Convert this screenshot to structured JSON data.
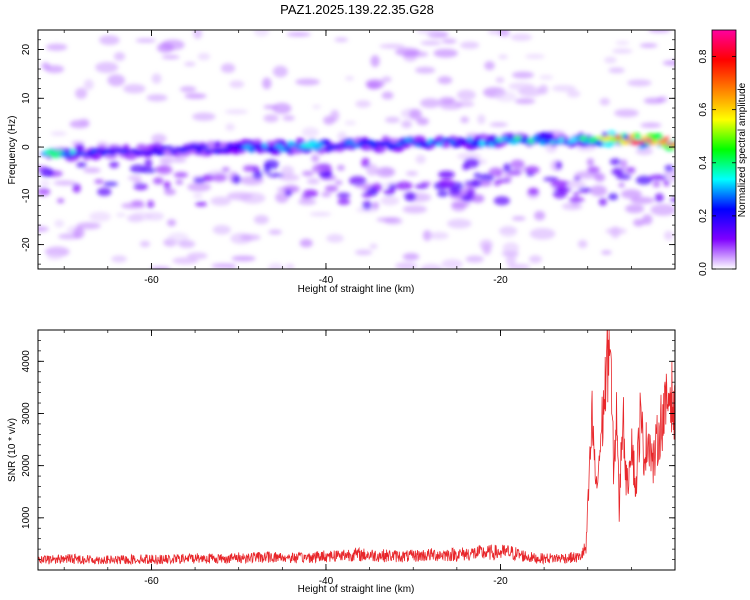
{
  "title": "PAZ1.2025.139.22.35.G28",
  "chart_data": [
    {
      "type": "heatmap",
      "title": "PAZ1.2025.139.22.35.G28",
      "xlabel": "Height of straight line (km)",
      "ylabel": "Frequency (Hz)",
      "xlim": [
        -73,
        0
      ],
      "ylim": [
        -25,
        24
      ],
      "xticks": [
        -60,
        -40,
        -20
      ],
      "yticks": [
        -20,
        -10,
        0,
        10,
        20
      ],
      "colorbar": {
        "label": "Normalized spectral amplitude",
        "range": [
          0,
          0.9
        ],
        "ticks": [
          0,
          0.2,
          0.4,
          0.6,
          0.8
        ],
        "colormap": [
          "#ffffff",
          "#7f00ff",
          "#0000ff",
          "#00ffff",
          "#00ff00",
          "#ffff00",
          "#ff8000",
          "#ff0000",
          "#ff00a0"
        ]
      },
      "ridge": {
        "x": [
          -72,
          -66,
          -60,
          -54,
          -48,
          -42,
          -36,
          -30,
          -24,
          -18,
          -12,
          -6,
          0
        ],
        "frequency": [
          -1.5,
          -1.2,
          -0.8,
          -0.4,
          0,
          0.2,
          0.5,
          0.8,
          1.0,
          1.3,
          1.5,
          1.6,
          1.0
        ],
        "amplitude": [
          0.35,
          0.2,
          0.2,
          0.2,
          0.25,
          0.28,
          0.22,
          0.25,
          0.22,
          0.35,
          0.25,
          0.7,
          0.9
        ]
      }
    },
    {
      "type": "line",
      "xlabel": "Height of straight line (km)",
      "ylabel": "SNR (10 * v/v)",
      "xlim": [
        -73,
        0
      ],
      "ylim": [
        0,
        4600
      ],
      "xticks": [
        -60,
        -40,
        -20
      ],
      "yticks": [
        1000,
        2000,
        3000,
        4000
      ],
      "color": "#e8262a",
      "series": [
        {
          "x": [
            -73,
            -70,
            -67,
            -64,
            -61,
            -58,
            -55,
            -52,
            -49,
            -46,
            -43,
            -40,
            -37,
            -34,
            -31,
            -28,
            -25,
            -22,
            -19,
            -16,
            -13,
            -11,
            -10.2,
            -9.5,
            -9,
            -8.5,
            -8,
            -7.5,
            -7,
            -6.7,
            -6.4,
            -6,
            -5.5,
            -5,
            -4.5,
            -4,
            -3.5,
            -3,
            -2.5,
            -2,
            -1.5,
            -1,
            -0.5,
            0
          ],
          "y": [
            180,
            220,
            200,
            190,
            210,
            200,
            230,
            220,
            240,
            250,
            230,
            270,
            300,
            280,
            260,
            290,
            300,
            330,
            340,
            220,
            230,
            240,
            400,
            2900,
            1500,
            2500,
            3500,
            4500,
            1800,
            3200,
            1100,
            3100,
            1500,
            2600,
            1500,
            2900,
            2200,
            2600,
            2000,
            2500,
            2900,
            3100,
            3500,
            2850
          ]
        }
      ]
    }
  ]
}
